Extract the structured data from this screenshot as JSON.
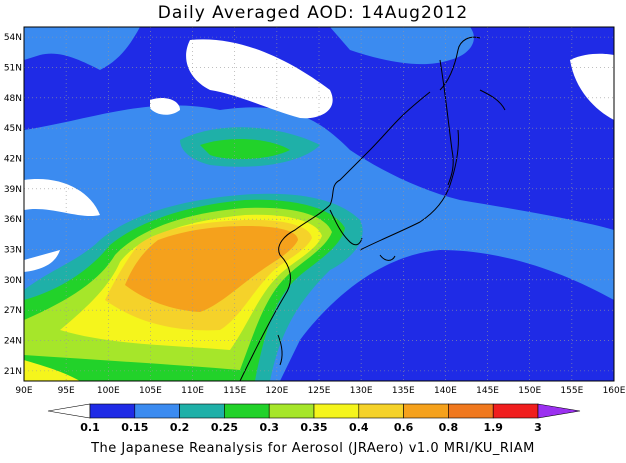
{
  "title": "Daily Averaged AOD: 14Aug2012",
  "credit": "The Japanese Reanalysis for Aerosol (JRAero) v1.0 MRI/KU_RIAM",
  "map": {
    "lon_range": [
      90,
      160
    ],
    "lat_range": [
      20,
      55
    ],
    "lon_ticks": [
      "90E",
      "95E",
      "100E",
      "105E",
      "110E",
      "115E",
      "120E",
      "125E",
      "130E",
      "135E",
      "140E",
      "145E",
      "150E",
      "155E",
      "160E"
    ],
    "lat_ticks": [
      "21N",
      "24N",
      "27N",
      "30N",
      "33N",
      "36N",
      "39N",
      "42N",
      "45N",
      "48N",
      "51N",
      "54N"
    ]
  },
  "colorbar": {
    "labels": [
      "0.1",
      "0.15",
      "0.2",
      "0.25",
      "0.3",
      "0.35",
      "0.4",
      "0.6",
      "0.8",
      "1.9",
      "3"
    ],
    "colors": [
      "#ffffff",
      "#1f2be6",
      "#3b8bf0",
      "#1fb0a8",
      "#22d22a",
      "#a6e62a",
      "#f5f51c",
      "#f5d22a",
      "#f5a11c",
      "#f0781e",
      "#f01e1e",
      "#9b30f0"
    ]
  }
}
